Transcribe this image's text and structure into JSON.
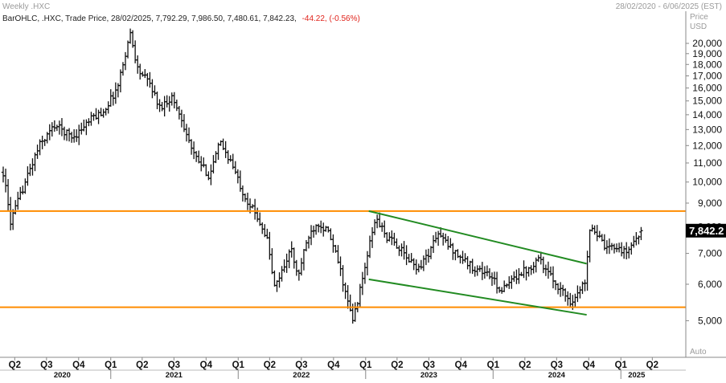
{
  "header": {
    "title": "Weekly .HXC",
    "date_range": "28/02/2020 - 6/06/2025 (EST)"
  },
  "legend": {
    "prefix": "BarOHLC, .HXC, Trade Price, 28/02/2025, 7,792.29, 7,986.50, 7,480.61, 7,842.23,",
    "change": "-44.22, (-0.56%)",
    "negative_color": "#e0231b"
  },
  "y_axis": {
    "title_line1": "Price",
    "title_line2": "USD",
    "auto_label": "Auto"
  },
  "last_price": {
    "label": "7,842.2",
    "value": 7842.23
  },
  "colors": {
    "bars": "#111111",
    "support_resistance": "#ff8c00",
    "trendline": "#228b22",
    "price_tag": "#000000",
    "grid": "#d9d9d9"
  },
  "chart_data": {
    "type": "ohlc",
    "title": "Weekly .HXC",
    "ylabel": "Price USD",
    "y_scale": "log",
    "ylim": [
      4300,
      21500
    ],
    "xlim": [
      "2020-02-28",
      "2025-06-06"
    ],
    "y_ticks": [
      {
        "value": 5000,
        "label": "5,000"
      },
      {
        "value": 6000,
        "label": "6,000"
      },
      {
        "value": 7000,
        "label": "7,000"
      },
      {
        "value": 8000,
        "label": "8,000"
      },
      {
        "value": 9000,
        "label": "9,000"
      },
      {
        "value": 10000,
        "label": "10,000"
      },
      {
        "value": 11000,
        "label": "11,000"
      },
      {
        "value": 12000,
        "label": "12,000"
      },
      {
        "value": 13000,
        "label": "13,000"
      },
      {
        "value": 14000,
        "label": "14,000"
      },
      {
        "value": 15000,
        "label": "15,000"
      },
      {
        "value": 16000,
        "label": "16,000"
      },
      {
        "value": 17000,
        "label": "17,000"
      },
      {
        "value": 18000,
        "label": "18,000"
      },
      {
        "value": 19000,
        "label": "19,000"
      },
      {
        "value": 20000,
        "label": "20,000"
      }
    ],
    "x_ticks": [
      {
        "date": "2020-04-01",
        "label": "Q2"
      },
      {
        "date": "2020-07-01",
        "label": "Q3"
      },
      {
        "date": "2020-10-01",
        "label": "Q4"
      },
      {
        "date": "2021-01-01",
        "label": "Q1"
      },
      {
        "date": "2021-04-01",
        "label": "Q2"
      },
      {
        "date": "2021-07-01",
        "label": "Q3"
      },
      {
        "date": "2021-10-01",
        "label": "Q4"
      },
      {
        "date": "2022-01-01",
        "label": "Q1"
      },
      {
        "date": "2022-04-01",
        "label": "Q2"
      },
      {
        "date": "2022-07-01",
        "label": "Q3"
      },
      {
        "date": "2022-10-01",
        "label": "Q4"
      },
      {
        "date": "2023-01-01",
        "label": "Q1"
      },
      {
        "date": "2023-04-01",
        "label": "Q2"
      },
      {
        "date": "2023-07-01",
        "label": "Q3"
      },
      {
        "date": "2023-10-01",
        "label": "Q4"
      },
      {
        "date": "2024-01-01",
        "label": "Q1"
      },
      {
        "date": "2024-04-01",
        "label": "Q2"
      },
      {
        "date": "2024-07-01",
        "label": "Q3"
      },
      {
        "date": "2024-10-01",
        "label": "Q4"
      },
      {
        "date": "2025-01-01",
        "label": "Q1"
      },
      {
        "date": "2025-04-01",
        "label": "Q2"
      }
    ],
    "year_labels": [
      {
        "date": "2020-08-15",
        "label": "2020"
      },
      {
        "date": "2021-07-01",
        "label": "2021"
      },
      {
        "date": "2022-07-01",
        "label": "2022"
      },
      {
        "date": "2023-07-01",
        "label": "2023"
      },
      {
        "date": "2024-07-01",
        "label": "2024"
      },
      {
        "date": "2025-02-15",
        "label": "2025"
      }
    ],
    "year_separators": [
      "2021-01-01",
      "2022-01-01",
      "2023-01-01",
      "2024-01-01",
      "2025-01-01"
    ],
    "price_anchors": [
      [
        "2020-02-28",
        10500
      ],
      [
        "2020-03-20",
        8200
      ],
      [
        "2020-05-01",
        10000
      ],
      [
        "2020-06-10",
        12000
      ],
      [
        "2020-07-25",
        13300
      ],
      [
        "2020-09-15",
        12500
      ],
      [
        "2020-11-10",
        13800
      ],
      [
        "2020-12-10",
        14200
      ],
      [
        "2021-01-20",
        16000
      ],
      [
        "2021-02-15",
        19500
      ],
      [
        "2021-02-26",
        21000
      ],
      [
        "2021-03-20",
        17500
      ],
      [
        "2021-04-25",
        16300
      ],
      [
        "2021-05-20",
        14500
      ],
      [
        "2021-06-25",
        15300
      ],
      [
        "2021-07-25",
        13600
      ],
      [
        "2021-08-25",
        11500
      ],
      [
        "2021-10-10",
        10300
      ],
      [
        "2021-11-10",
        12200
      ],
      [
        "2021-12-10",
        11100
      ],
      [
        "2022-01-20",
        9300
      ],
      [
        "2022-03-01",
        8300
      ],
      [
        "2022-03-25",
        7500
      ],
      [
        "2022-04-15",
        5900
      ],
      [
        "2022-05-10",
        6500
      ],
      [
        "2022-06-01",
        7200
      ],
      [
        "2022-06-20",
        6200
      ],
      [
        "2022-07-20",
        7600
      ],
      [
        "2022-08-15",
        8200
      ],
      [
        "2022-09-15",
        7800
      ],
      [
        "2022-10-15",
        6700
      ],
      [
        "2022-11-10",
        5500
      ],
      [
        "2022-11-25",
        5000
      ],
      [
        "2022-12-20",
        6000
      ],
      [
        "2023-01-20",
        7800
      ],
      [
        "2023-02-01",
        8350
      ],
      [
        "2023-03-01",
        7600
      ],
      [
        "2023-04-01",
        7300
      ],
      [
        "2023-05-01",
        6800
      ],
      [
        "2023-06-01",
        6500
      ],
      [
        "2023-07-05",
        7100
      ],
      [
        "2023-07-25",
        7750
      ],
      [
        "2023-08-25",
        7300
      ],
      [
        "2023-10-01",
        6850
      ],
      [
        "2023-11-01",
        6550
      ],
      [
        "2023-12-20",
        6300
      ],
      [
        "2024-01-25",
        5800
      ],
      [
        "2024-02-15",
        6000
      ],
      [
        "2024-03-15",
        6350
      ],
      [
        "2024-04-15",
        6500
      ],
      [
        "2024-05-10",
        6900
      ],
      [
        "2024-06-01",
        6400
      ],
      [
        "2024-07-01",
        6000
      ],
      [
        "2024-08-10",
        5500
      ],
      [
        "2024-08-30",
        5700
      ],
      [
        "2024-09-20",
        6100
      ],
      [
        "2024-10-05",
        8100
      ],
      [
        "2024-10-25",
        7700
      ],
      [
        "2024-11-20",
        7100
      ],
      [
        "2024-12-15",
        7300
      ],
      [
        "2025-01-15",
        7000
      ],
      [
        "2025-02-15",
        7600
      ],
      [
        "2025-02-28",
        7842
      ]
    ],
    "horizontal_lines": [
      {
        "value": 8650,
        "color": "#ff8c00"
      },
      {
        "value": 5350,
        "color": "#ff8c00"
      }
    ],
    "trendlines": [
      {
        "from": [
          "2023-01-10",
          8650
        ],
        "to": [
          "2024-09-25",
          6650
        ],
        "color": "#228b22"
      },
      {
        "from": [
          "2023-01-10",
          6150
        ],
        "to": [
          "2024-09-25",
          5150
        ],
        "color": "#228b22"
      }
    ]
  }
}
